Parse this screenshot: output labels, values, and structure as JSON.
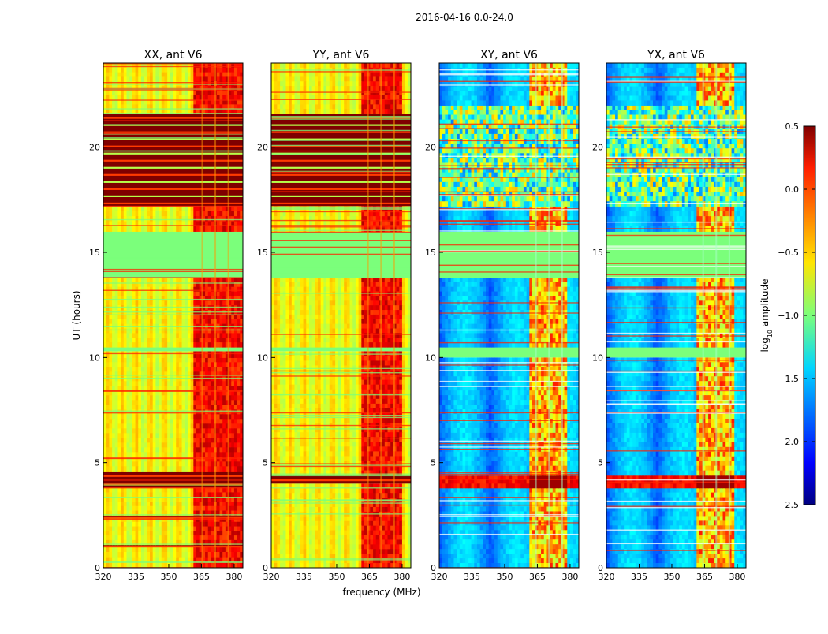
{
  "chart_data": {
    "type": "heatmap",
    "suptitle": "2016-04-16 0.0-24.0",
    "xlabel": "frequency (MHz)",
    "ylabel": "UT (hours)",
    "xlim": [
      320,
      384
    ],
    "ylim": [
      0,
      24
    ],
    "xticks": [
      320,
      335,
      350,
      365,
      380
    ],
    "yticks": [
      0,
      5,
      10,
      15,
      20
    ],
    "panels": [
      {
        "title": "XX, ant V6",
        "kind": "parallel",
        "row_bands": [
          {
            "t0": 0.0,
            "t1": 1.0,
            "level": "low"
          },
          {
            "t0": 1.0,
            "t1": 1.1,
            "level": "flag"
          },
          {
            "t0": 1.1,
            "t1": 2.4,
            "level": "low"
          },
          {
            "t0": 2.4,
            "t1": 2.5,
            "level": "flag"
          },
          {
            "t0": 2.5,
            "t1": 3.8,
            "level": "low"
          },
          {
            "t0": 3.8,
            "t1": 4.6,
            "level": "flag"
          },
          {
            "t0": 4.6,
            "t1": 10.0,
            "level": "low"
          },
          {
            "t0": 10.0,
            "t1": 10.3,
            "level": "low"
          },
          {
            "t0": 10.3,
            "t1": 10.5,
            "level": "gap"
          },
          {
            "t0": 10.5,
            "t1": 13.8,
            "level": "low"
          },
          {
            "t0": 13.8,
            "t1": 16.0,
            "level": "gap"
          },
          {
            "t0": 16.0,
            "t1": 17.2,
            "level": "low"
          },
          {
            "t0": 17.2,
            "t1": 21.6,
            "level": "flag"
          },
          {
            "t0": 21.6,
            "t1": 24.0,
            "level": "low"
          }
        ],
        "bright_channels_MHz": [
          362,
          384
        ]
      },
      {
        "title": "YY, ant V6",
        "kind": "parallel",
        "row_bands": [
          {
            "t0": 0.0,
            "t1": 4.0,
            "level": "low"
          },
          {
            "t0": 4.0,
            "t1": 4.4,
            "level": "flag"
          },
          {
            "t0": 4.4,
            "t1": 10.3,
            "level": "low"
          },
          {
            "t0": 10.3,
            "t1": 10.5,
            "level": "gap"
          },
          {
            "t0": 10.5,
            "t1": 13.8,
            "level": "low"
          },
          {
            "t0": 13.8,
            "t1": 16.0,
            "level": "gap"
          },
          {
            "t0": 16.0,
            "t1": 17.2,
            "level": "low"
          },
          {
            "t0": 17.2,
            "t1": 21.6,
            "level": "flag"
          },
          {
            "t0": 21.6,
            "t1": 24.0,
            "level": "low"
          }
        ],
        "bright_channels_MHz": [
          361,
          380
        ]
      },
      {
        "title": "XY, ant V6",
        "kind": "cross",
        "row_bands": [
          {
            "t0": 0.0,
            "t1": 3.8,
            "level": "low"
          },
          {
            "t0": 3.8,
            "t1": 4.4,
            "level": "flag"
          },
          {
            "t0": 4.4,
            "t1": 10.0,
            "level": "low"
          },
          {
            "t0": 10.0,
            "t1": 10.5,
            "level": "gap"
          },
          {
            "t0": 10.5,
            "t1": 13.8,
            "level": "low"
          },
          {
            "t0": 13.8,
            "t1": 16.0,
            "level": "gap"
          },
          {
            "t0": 16.0,
            "t1": 17.2,
            "level": "low"
          },
          {
            "t0": 17.2,
            "t1": 22.0,
            "level": "noise"
          },
          {
            "t0": 22.0,
            "t1": 24.0,
            "level": "low"
          }
        ],
        "bright_channels_MHz": [
          361,
          378
        ]
      },
      {
        "title": "YX, ant V6",
        "kind": "cross",
        "row_bands": [
          {
            "t0": 0.0,
            "t1": 3.8,
            "level": "low"
          },
          {
            "t0": 3.8,
            "t1": 4.4,
            "level": "flag"
          },
          {
            "t0": 4.4,
            "t1": 10.0,
            "level": "low"
          },
          {
            "t0": 10.0,
            "t1": 10.5,
            "level": "gap"
          },
          {
            "t0": 10.5,
            "t1": 13.8,
            "level": "low"
          },
          {
            "t0": 13.8,
            "t1": 16.0,
            "level": "gap"
          },
          {
            "t0": 16.0,
            "t1": 17.2,
            "level": "low"
          },
          {
            "t0": 17.2,
            "t1": 22.0,
            "level": "noise"
          },
          {
            "t0": 22.0,
            "t1": 24.0,
            "level": "low"
          }
        ],
        "bright_channels_MHz": [
          361,
          378
        ]
      }
    ],
    "colorbar": {
      "label_main": "log",
      "label_sub": "10",
      "label_rest": " amplitude",
      "range": [
        -2.5,
        0.5
      ],
      "ticks": [
        0.5,
        0.0,
        -0.5,
        -1.0,
        -1.5,
        -2.0,
        -2.5
      ],
      "tick_labels": [
        "0.5",
        "0.0",
        "−0.5",
        "−1.0",
        "−1.5",
        "−2.0",
        "−2.5"
      ],
      "colormap": "jet"
    }
  }
}
